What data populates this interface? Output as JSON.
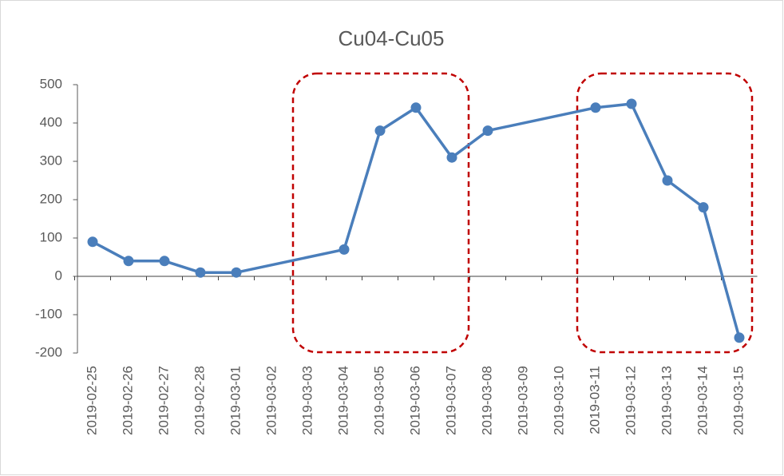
{
  "chart_data": {
    "type": "line",
    "title": "Cu04-Cu05",
    "x": [
      "2019-02-25",
      "2019-02-26",
      "2019-02-27",
      "2019-02-28",
      "2019-03-01",
      "2019-03-04",
      "2019-03-05",
      "2019-03-06",
      "2019-03-07",
      "2019-03-08",
      "2019-03-11",
      "2019-03-12",
      "2019-03-13",
      "2019-03-14",
      "2019-03-15"
    ],
    "series": [
      {
        "name": "Cu04-Cu05",
        "color": "#4a7ebb",
        "values": [
          90,
          40,
          40,
          10,
          10,
          70,
          380,
          440,
          310,
          380,
          440,
          450,
          250,
          180,
          -160
        ]
      }
    ],
    "xticks": [
      "2019-02-25",
      "2019-02-26",
      "2019-02-27",
      "2019-02-28",
      "2019-03-01",
      "2019-03-02",
      "2019-03-03",
      "2019-03-04",
      "2019-03-05",
      "2019-03-06",
      "2019-03-07",
      "2019-03-08",
      "2019-03-09",
      "2019-03-10",
      "2019-03-11",
      "2019-03-12",
      "2019-03-13",
      "2019-03-14",
      "2019-03-15"
    ],
    "ylim": [
      -200,
      500
    ],
    "yticks": [
      -200,
      -100,
      0,
      100,
      200,
      300,
      400,
      500
    ],
    "grid": false
  }
}
